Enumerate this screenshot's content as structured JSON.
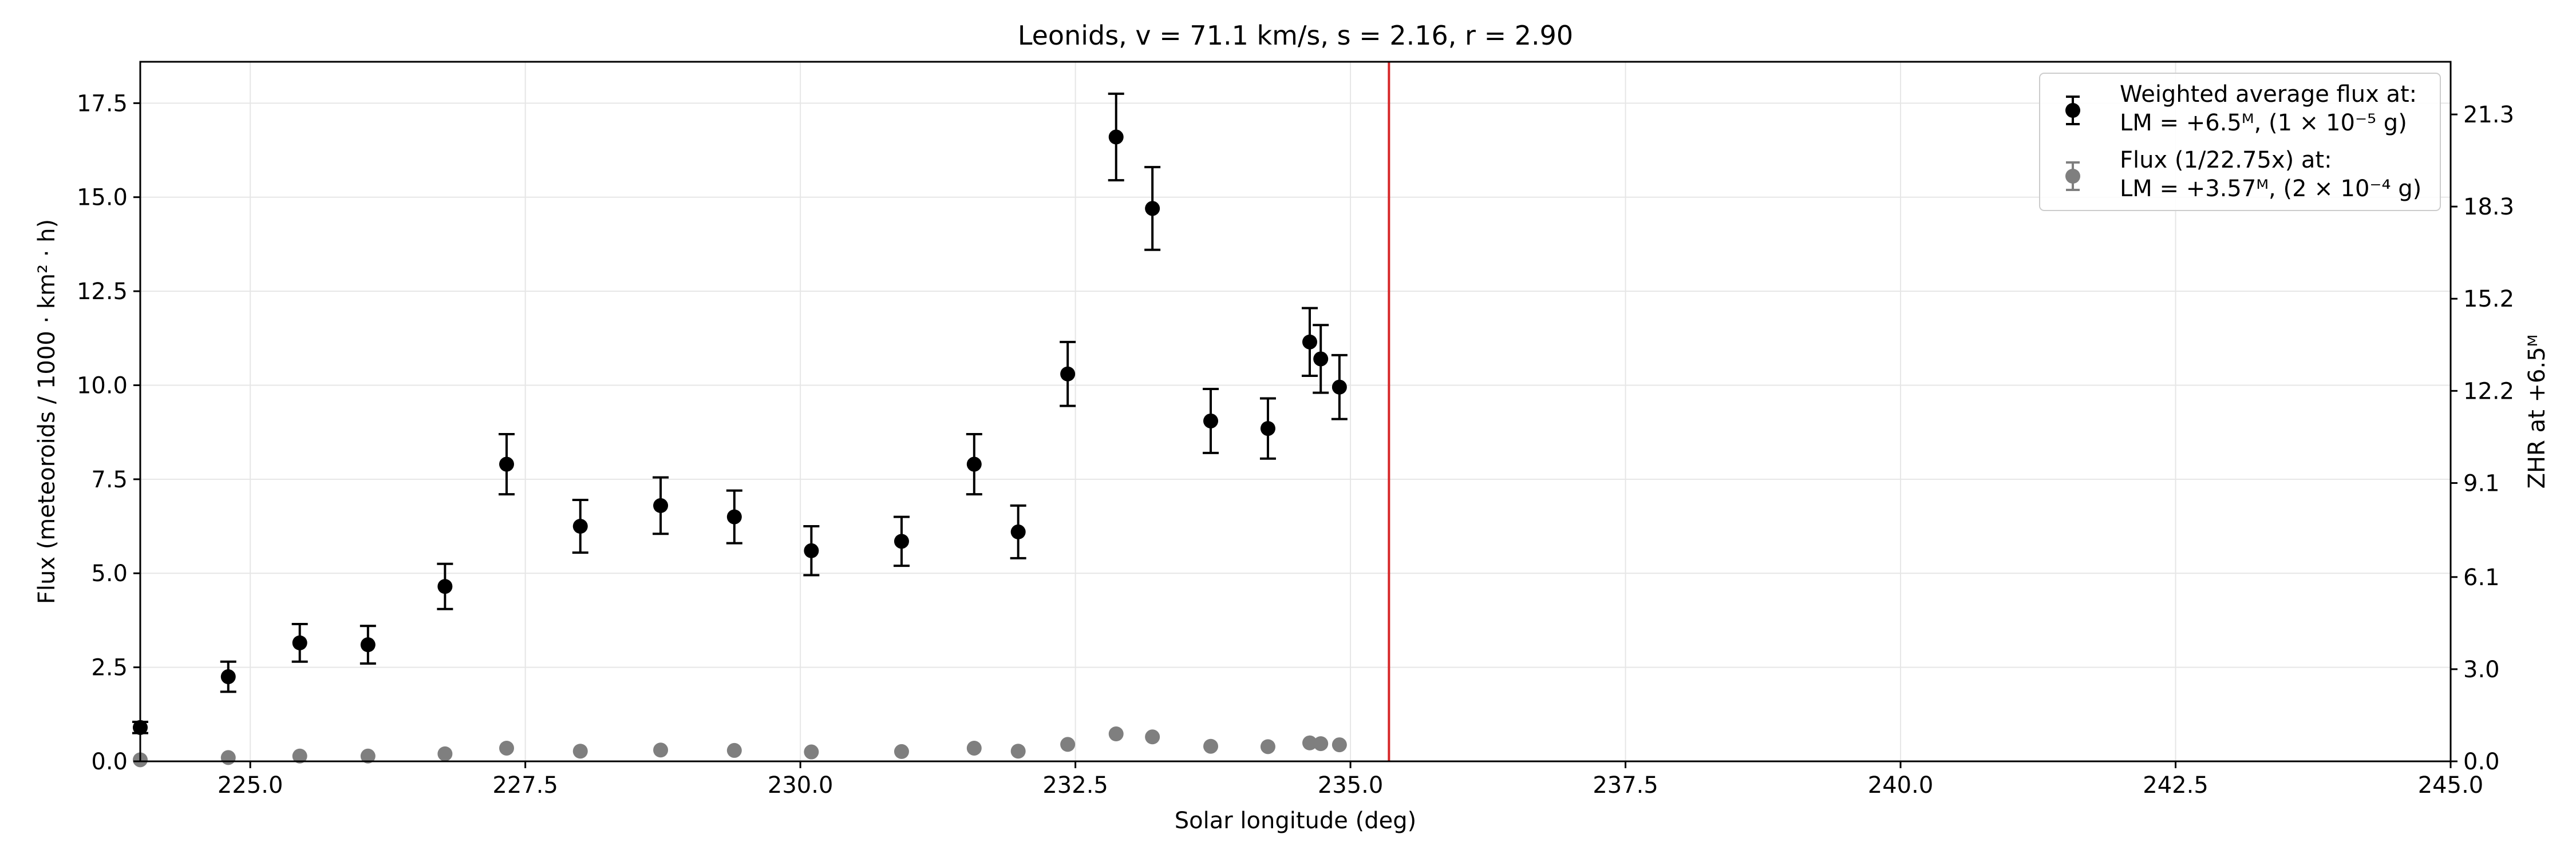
{
  "chart_data": {
    "type": "scatter",
    "title": "Leonids, v = 71.1 km/s, s = 2.16, r = 2.90",
    "xlabel": "Solar longitude (deg)",
    "ylabel": "Flux (meteoroids / 1000 · km² · h)",
    "y2label": "ZHR at +6.5ᴹ",
    "xlim": [
      224.0,
      245.0
    ],
    "ylim": [
      0,
      18.6
    ],
    "x_ticks": [
      225.0,
      227.5,
      230.0,
      232.5,
      235.0,
      237.5,
      240.0,
      242.5,
      245.0
    ],
    "x_tick_labels": [
      "225.0",
      "227.5",
      "230.0",
      "232.5",
      "235.0",
      "237.5",
      "240.0",
      "242.5",
      "245.0"
    ],
    "y_ticks": [
      0.0,
      2.5,
      5.0,
      7.5,
      10.0,
      12.5,
      15.0,
      17.5
    ],
    "y_tick_labels": [
      "0.0",
      "2.5",
      "5.0",
      "7.5",
      "10.0",
      "12.5",
      "15.0",
      "17.5"
    ],
    "y2_ticks": [
      0.0,
      2.45,
      4.9,
      7.4,
      9.85,
      12.3,
      14.75,
      17.2
    ],
    "y2_tick_labels": [
      "0.0",
      "3.0",
      "6.1",
      "9.1",
      "12.2",
      "15.2",
      "18.3",
      "21.3"
    ],
    "grid": true,
    "legend_position": "top-right",
    "vertical_line": {
      "x": 235.35,
      "color": "#d62728"
    },
    "series": [
      {
        "name": "Weighted average flux at:",
        "name_line2": "LM = +6.5ᴹ, (1 × 10⁻⁵ g)",
        "color": "#000000",
        "x": [
          224.0,
          224.8,
          225.45,
          226.07,
          226.77,
          227.33,
          228.0,
          228.73,
          229.4,
          230.1,
          230.92,
          231.58,
          231.98,
          232.43,
          232.87,
          233.2,
          233.73,
          234.25,
          234.63,
          234.73,
          234.9
        ],
        "y": [
          0.9,
          2.25,
          3.15,
          3.1,
          4.65,
          7.9,
          6.25,
          6.8,
          6.5,
          5.6,
          5.85,
          7.9,
          6.1,
          10.3,
          16.6,
          14.7,
          9.05,
          8.85,
          11.15,
          10.7,
          9.95
        ],
        "yerr": [
          0.15,
          0.4,
          0.5,
          0.5,
          0.6,
          0.8,
          0.7,
          0.75,
          0.7,
          0.65,
          0.65,
          0.8,
          0.7,
          0.85,
          1.15,
          1.1,
          0.85,
          0.8,
          0.9,
          0.9,
          0.85
        ]
      },
      {
        "name": "Flux (1/22.75x) at:",
        "name_line2": "LM = +3.57ᴹ, (2 × 10⁻⁴ g)",
        "color": "#7f7f7f",
        "x": [
          224.0,
          224.8,
          225.45,
          226.07,
          226.77,
          227.33,
          228.0,
          228.73,
          229.4,
          230.1,
          230.92,
          231.58,
          231.98,
          232.43,
          232.87,
          233.2,
          233.73,
          234.25,
          234.63,
          234.73,
          234.9
        ],
        "y": [
          0.04,
          0.1,
          0.14,
          0.14,
          0.2,
          0.35,
          0.27,
          0.3,
          0.29,
          0.25,
          0.26,
          0.35,
          0.27,
          0.45,
          0.73,
          0.65,
          0.4,
          0.39,
          0.49,
          0.47,
          0.44
        ],
        "yerr": [
          0.01,
          0.02,
          0.02,
          0.02,
          0.03,
          0.04,
          0.03,
          0.03,
          0.03,
          0.03,
          0.03,
          0.04,
          0.03,
          0.04,
          0.05,
          0.05,
          0.04,
          0.04,
          0.04,
          0.04,
          0.04
        ]
      }
    ]
  }
}
